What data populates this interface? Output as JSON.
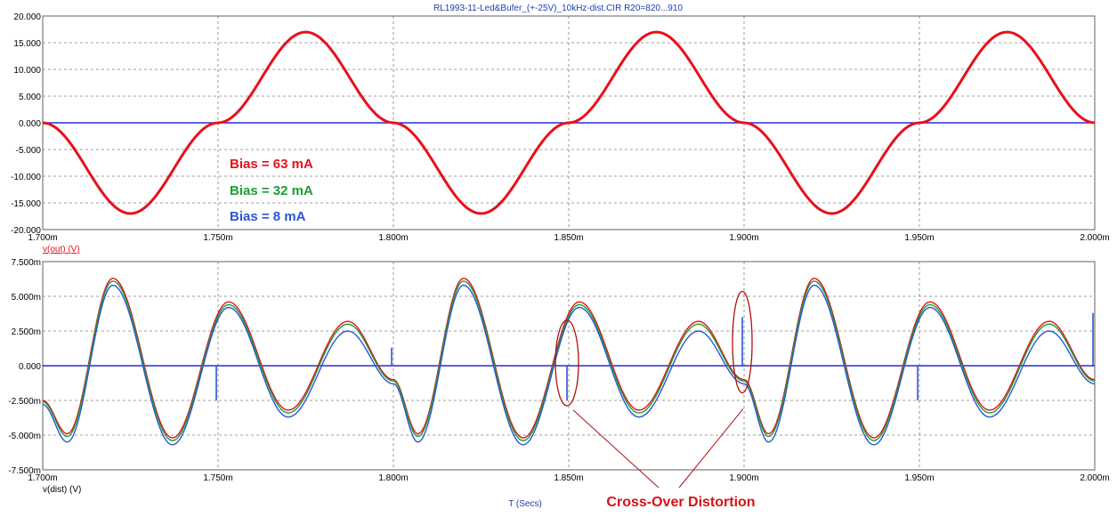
{
  "window_title": "RL1993-11-Led&Bufer_(+-25V)_10kHz-dist.CIR R20=820...910",
  "x_axis_label": "T (Secs)",
  "colors": {
    "title": "#1f3fae",
    "grid": "#808080",
    "frame": "#606060",
    "zero_line": "#0000c8",
    "red": "#e8101a",
    "green": "#1aa032",
    "blue": "#2a56d8",
    "annotation_red": "#d81018",
    "pointer": "#b01010"
  },
  "chart_data": [
    {
      "type": "line",
      "ylabel": "v(out) (V)",
      "xlim": [
        0.0017,
        0.002
      ],
      "ylim": [
        -20,
        20
      ],
      "x_ticks": [
        "1.700m",
        "1.750m",
        "1.800m",
        "1.850m",
        "1.900m",
        "1.950m",
        "2.000m"
      ],
      "y_ticks": [
        "20.000",
        "15.000",
        "10.000",
        "5.000",
        "0.000",
        "-5.000",
        "-10.000",
        "-15.000",
        "-20.000"
      ],
      "grid": true,
      "annotations": [
        {
          "text": "Bias = 63 mA",
          "color": "red"
        },
        {
          "text": "Bias = 32 mA",
          "color": "green"
        },
        {
          "text": "Bias = 8 mA",
          "color": "blue"
        }
      ],
      "series": [
        {
          "color": "red",
          "x": [
            0.0017,
            0.001725,
            0.00175,
            0.001775,
            0.0018,
            0.001825,
            0.00185,
            0.001875,
            0.0019,
            0.001925,
            0.00195,
            0.001975,
            0.002
          ],
          "y": [
            0,
            -17,
            0,
            17,
            0,
            -17,
            0,
            17,
            0,
            -17,
            0,
            17,
            0
          ]
        }
      ]
    },
    {
      "type": "line",
      "ylabel": "v(dist) (V)",
      "xlim": [
        0.0017,
        0.002
      ],
      "ylim": [
        -0.0075,
        0.0075
      ],
      "x_ticks": [
        "1.700m",
        "1.750m",
        "1.800m",
        "1.850m",
        "1.900m",
        "1.950m",
        "2.000m"
      ],
      "y_ticks": [
        "7.500m",
        "5.000m",
        "2.500m",
        "0.000",
        "-2.500m",
        "-5.000m",
        "-7.500m"
      ],
      "grid": true,
      "annotation": "Cross-Over Distortion",
      "series": [
        {
          "color": "red",
          "x": [
            0.0017,
            0.001707,
            0.00172,
            0.001737,
            0.001753,
            0.00177,
            0.001787,
            0.0018,
            0.001807,
            0.00182,
            0.001837,
            0.001853,
            0.00187,
            0.001887,
            0.0019,
            0.001907,
            0.00192,
            0.001937,
            0.001953,
            0.00197,
            0.001987,
            0.002
          ],
          "y": [
            -0.0025,
            -0.0049,
            0.0063,
            -0.0052,
            0.0046,
            -0.0032,
            0.0032,
            -0.001,
            -0.0049,
            0.0063,
            -0.0052,
            0.0046,
            -0.0032,
            0.0032,
            -0.001,
            -0.0049,
            0.0063,
            -0.0052,
            0.0046,
            -0.0032,
            0.0032,
            -0.001
          ]
        },
        {
          "color": "green",
          "x": [
            0.0017,
            0.001707,
            0.00172,
            0.001737,
            0.001753,
            0.00177,
            0.001787,
            0.0018,
            0.001807,
            0.00182,
            0.001837,
            0.001853,
            0.00187,
            0.001887,
            0.0019,
            0.001907,
            0.00192,
            0.001937,
            0.001953,
            0.00197,
            0.001987,
            0.002
          ],
          "y": [
            -0.0026,
            -0.0051,
            0.0061,
            -0.0054,
            0.0044,
            -0.0034,
            0.003,
            -0.0011,
            -0.0051,
            0.0061,
            -0.0054,
            0.0044,
            -0.0034,
            0.003,
            -0.0011,
            -0.0051,
            0.0061,
            -0.0054,
            0.0044,
            -0.0034,
            0.003,
            -0.0011
          ]
        },
        {
          "color": "blue",
          "x": [
            0.0017,
            0.001707,
            0.00172,
            0.001737,
            0.001753,
            0.00177,
            0.001787,
            0.0018,
            0.001807,
            0.00182,
            0.001837,
            0.001853,
            0.00187,
            0.001887,
            0.0019,
            0.001907,
            0.00192,
            0.001937,
            0.001953,
            0.00197,
            0.001987,
            0.002
          ],
          "y": [
            -0.0028,
            -0.0055,
            0.0058,
            -0.0057,
            0.0042,
            -0.0037,
            0.0025,
            -0.0013,
            -0.0055,
            0.0058,
            -0.0057,
            0.0042,
            -0.0037,
            0.0025,
            -0.0013,
            -0.0055,
            0.0058,
            -0.0057,
            0.0042,
            -0.0037,
            0.0025,
            -0.0013
          ],
          "spikes": [
            {
              "x": 0.0017495,
              "y": -0.0025
            },
            {
              "x": 0.0017995,
              "y": 0.0013
            },
            {
              "x": 0.0018495,
              "y": -0.0025
            },
            {
              "x": 0.0018995,
              "y": 0.0035
            },
            {
              "x": 0.0019495,
              "y": -0.0025
            },
            {
              "x": 0.0019995,
              "y": 0.0038
            }
          ]
        }
      ]
    }
  ]
}
